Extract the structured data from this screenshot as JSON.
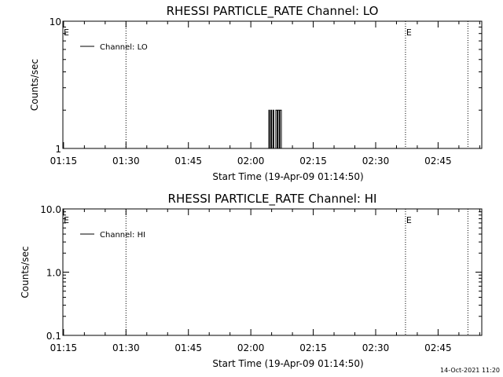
{
  "chart_data": [
    {
      "type": "line",
      "title": "RHESSI PARTICLE_RATE Channel: LO",
      "xlabel": "Start Time (19-Apr-09 01:14:50)",
      "ylabel": "Counts/sec",
      "yscale": "log",
      "ylim": [
        1,
        10
      ],
      "xlim": [
        "01:14:50",
        "02:55:30"
      ],
      "x_tick_labels": [
        "01:15",
        "01:30",
        "01:45",
        "02:00",
        "02:15",
        "02:30",
        "02:45"
      ],
      "y_tick_labels": [
        "1",
        "10"
      ],
      "legend": {
        "placement": "top-left",
        "entries": [
          "Channel: LO"
        ]
      },
      "event_markers": [
        {
          "time": "01:14:50",
          "label": "E"
        },
        {
          "time": "01:30:00",
          "label": ""
        },
        {
          "time": "02:37:10",
          "label": "E"
        },
        {
          "time": "02:52:10",
          "label": ""
        }
      ],
      "series": [
        {
          "name": "Channel: LO",
          "x": [
            "02:04:00",
            "02:04:20",
            "02:04:30",
            "02:04:50",
            "02:05:00",
            "02:05:20",
            "02:05:30",
            "02:05:50",
            "02:06:00",
            "02:06:20",
            "02:06:30",
            "02:06:50",
            "02:07:00",
            "02:07:20",
            "02:07:30"
          ],
          "y": [
            1,
            2,
            1,
            2,
            1,
            2,
            1,
            1,
            2,
            1,
            2,
            1,
            2,
            1,
            1
          ]
        }
      ]
    },
    {
      "type": "line",
      "title": "RHESSI PARTICLE_RATE Channel: HI",
      "xlabel": "Start Time (19-Apr-09 01:14:50)",
      "ylabel": "Counts/sec",
      "yscale": "log",
      "ylim": [
        0.1,
        10
      ],
      "xlim": [
        "01:14:50",
        "02:55:30"
      ],
      "x_tick_labels": [
        "01:15",
        "01:30",
        "01:45",
        "02:00",
        "02:15",
        "02:30",
        "02:45"
      ],
      "y_tick_labels": [
        "0.1",
        "1.0",
        "10.0"
      ],
      "legend": {
        "placement": "top-left",
        "entries": [
          "Channel: HI"
        ]
      },
      "event_markers": [
        {
          "time": "01:14:50",
          "label": "E"
        },
        {
          "time": "01:30:00",
          "label": ""
        },
        {
          "time": "02:37:10",
          "label": "E"
        },
        {
          "time": "02:52:10",
          "label": ""
        }
      ],
      "series": [
        {
          "name": "Channel: HI",
          "x": [],
          "y": []
        }
      ]
    }
  ],
  "footer": {
    "timestamp": "14-Oct-2021 11:20"
  },
  "colors": {
    "foreground": "#000000",
    "background": "#ffffff"
  }
}
